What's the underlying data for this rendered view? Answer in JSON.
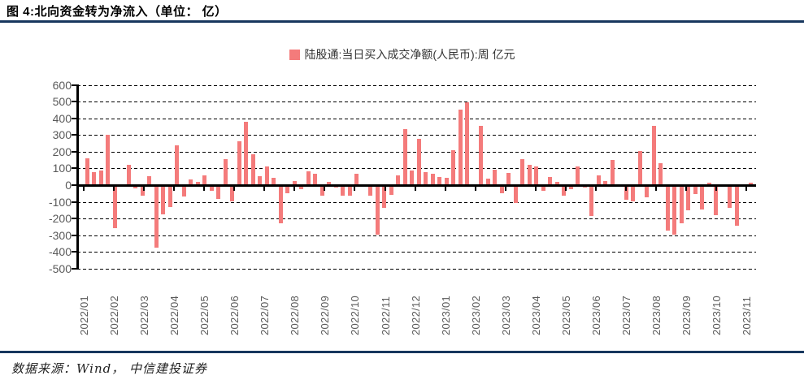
{
  "title": "图 4:北向资金转为净流入（单位： 亿）",
  "legend": {
    "label": "陆股通:当日买入成交净额(人民币):周 亿元",
    "swatch_color": "#F47B7B"
  },
  "footer": {
    "source": "数据来源：Wind， 中信建投证券"
  },
  "colors": {
    "bar": "#F47B7B",
    "divider": "#17375E",
    "axis": "#000000",
    "tick_label": "#595959"
  },
  "chart_data": {
    "type": "bar",
    "title": "图 4:北向资金转为净流入（单位： 亿）",
    "series_name": "陆股通:当日买入成交净额(人民币):周 亿元",
    "unit": "亿元",
    "ylim": [
      -500,
      600
    ],
    "y_ticks": [
      600,
      500,
      400,
      300,
      200,
      100,
      0,
      -100,
      -200,
      -300,
      -400,
      -500
    ],
    "grid": "horizontal-dashed",
    "legend_position": "top-center",
    "x_tick_labels": [
      "2022/01",
      "2022/02",
      "2022/03",
      "2022/04",
      "2022/05",
      "2022/06",
      "2022/07",
      "2022/08",
      "2022/09",
      "2022/10",
      "2022/11",
      "2022/12",
      "2023/01",
      "2023/02",
      "2023/03",
      "2023/04",
      "2023/05",
      "2023/06",
      "2023/07",
      "2023/08",
      "2023/09",
      "2023/10",
      "2023/11"
    ],
    "values": [
      160,
      80,
      90,
      303,
      -260,
      0,
      122,
      -21,
      -65,
      52,
      -373,
      -175,
      -130,
      238,
      -70,
      36,
      19,
      57,
      -32,
      -81,
      157,
      -97,
      263,
      378,
      183,
      53,
      113,
      44,
      -227,
      -49,
      24,
      -24,
      81,
      70,
      -65,
      21,
      -16,
      -65,
      -62,
      70,
      0,
      -65,
      -295,
      -135,
      -60,
      60,
      336,
      86,
      276,
      78,
      68,
      49,
      45,
      211,
      454,
      498,
      0,
      357,
      40,
      92,
      -49,
      73,
      -105,
      154,
      122,
      110,
      -35,
      50,
      18,
      -65,
      -22,
      110,
      -15,
      -185,
      58,
      24,
      149,
      5,
      -89,
      -97,
      206,
      -73,
      357,
      133,
      -272,
      -296,
      -230,
      -150,
      -52,
      -148,
      16,
      -178,
      0,
      -135,
      -243,
      0,
      15
    ]
  }
}
